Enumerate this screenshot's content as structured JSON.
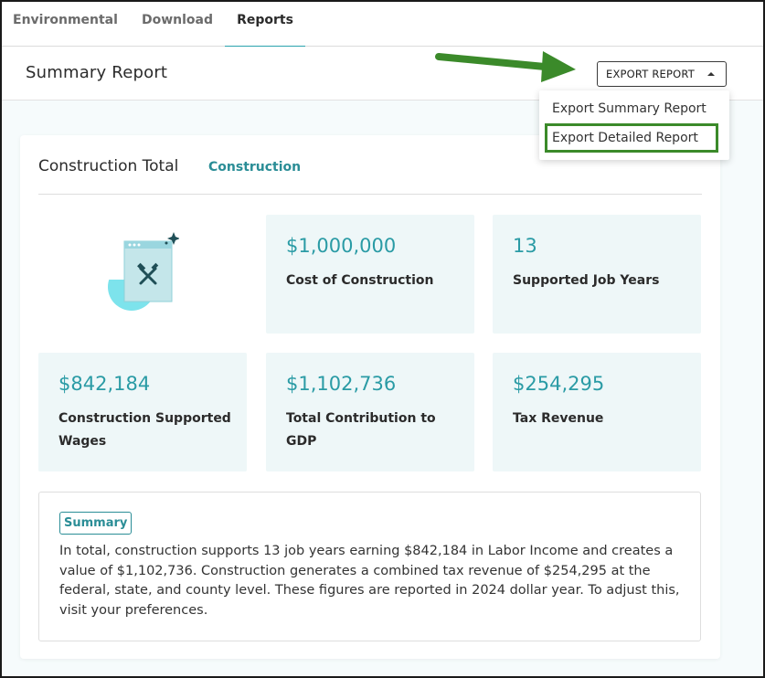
{
  "tabs": [
    {
      "label": "Environmental"
    },
    {
      "label": "Download"
    },
    {
      "label": "Reports"
    }
  ],
  "header": {
    "title": "Summary Report",
    "export_label": "EXPORT REPORT"
  },
  "dropdown": {
    "items": [
      {
        "label": "Export Summary Report"
      },
      {
        "label": "Export Detailed Report"
      }
    ]
  },
  "card": {
    "title": "Construction Total",
    "subtitle": "Construction",
    "stats": [
      {
        "value": "$1,000,000",
        "label": "Cost of Construction"
      },
      {
        "value": "13",
        "label": "Supported Job Years"
      },
      {
        "value": "$842,184",
        "label": "Construction Supported Wages"
      },
      {
        "value": "$1,102,736",
        "label": "Total Contribution to GDP"
      },
      {
        "value": "$254,295",
        "label": "Tax Revenue"
      }
    ],
    "summary": {
      "badge": "Summary",
      "text": "In total, construction supports 13 job years earning $842,184 in Labor Income and creates a value of $1,102,736. Construction generates a combined tax revenue of $254,295 at the federal, state, and county level. These figures are reported in 2024 dollar year. To adjust this, visit your preferences."
    }
  },
  "colors": {
    "accent": "#2a9ba5",
    "highlight_border": "#3b8a2a",
    "arrow": "#3b8a2a"
  },
  "icons": {
    "illustration": "construction-tools-illustration",
    "arrow": "green-annotation-arrow-icon",
    "caret": "caret-up-icon"
  }
}
